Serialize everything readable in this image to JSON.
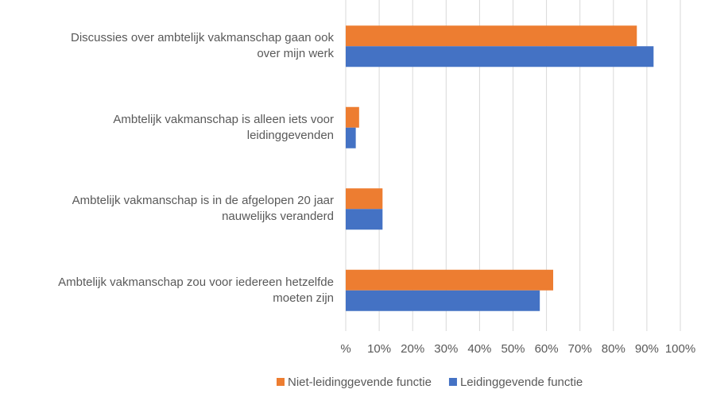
{
  "chart_data": {
    "type": "bar",
    "orientation": "horizontal",
    "categories": [
      "Discussies over ambtelijk vakmanschap gaan ook\nover mijn werk",
      "Ambtelijk vakmanschap is alleen iets voor\nleidinggevenden",
      "Ambtelijk vakmanschap is in de afgelopen 20 jaar\nnauwelijks veranderd",
      "Ambtelijk vakmanschap zou voor iedereen hetzelfde\nmoeten zijn"
    ],
    "series": [
      {
        "name": "Niet-leidinggevende functie",
        "color": "#ed7d31",
        "values": [
          87,
          4,
          11,
          62
        ]
      },
      {
        "name": "Leidinggevende functie",
        "color": "#4472c4",
        "values": [
          92,
          3,
          11,
          58
        ]
      }
    ],
    "xlim": [
      0,
      100
    ],
    "xticks": [
      {
        "value": 0,
        "label": "%"
      },
      {
        "value": 10,
        "label": "10%"
      },
      {
        "value": 20,
        "label": "20%"
      },
      {
        "value": 30,
        "label": "30%"
      },
      {
        "value": 40,
        "label": "40%"
      },
      {
        "value": 50,
        "label": "50%"
      },
      {
        "value": 60,
        "label": "60%"
      },
      {
        "value": 70,
        "label": "70%"
      },
      {
        "value": 80,
        "label": "80%"
      },
      {
        "value": 90,
        "label": "90%"
      },
      {
        "value": 100,
        "label": "100%"
      }
    ],
    "grid": true,
    "legend": "bottom"
  }
}
